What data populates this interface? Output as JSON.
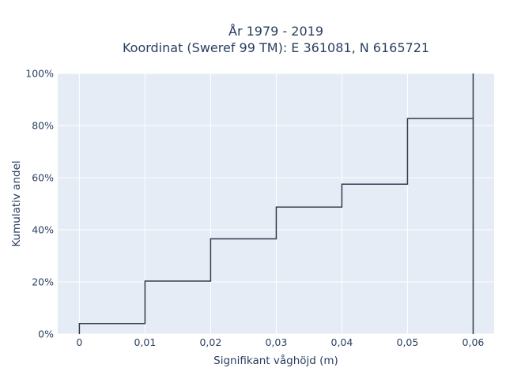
{
  "chart_data": {
    "type": "line",
    "line_shape": "step",
    "title_lines": [
      "År 1979 - 2019",
      "Koordinat (Sweref 99 TM): E 361081, N 6165721"
    ],
    "xlabel": "Signifikant våghöjd (m)",
    "ylabel": "Kumulativ andel",
    "xlim": [
      -0.0033,
      0.0632
    ],
    "ylim": [
      0,
      1.0
    ],
    "x_ticks": [
      0,
      0.01,
      0.02,
      0.03,
      0.04,
      0.05,
      0.06
    ],
    "x_tick_labels": [
      "0",
      "0,01",
      "0,02",
      "0,03",
      "0,04",
      "0,05",
      "0,06"
    ],
    "y_ticks": [
      0,
      0.2,
      0.4,
      0.6,
      0.8,
      1.0
    ],
    "y_tick_labels": [
      "0%",
      "20%",
      "40%",
      "60%",
      "80%",
      "100%"
    ],
    "grid": true,
    "colors": {
      "plot_bg": "#e5ecf6",
      "grid": "#ffffff",
      "line": "#2f3b4c",
      "text": "#2a3f5f"
    },
    "series": [
      {
        "x": [
          0,
          0,
          0.01,
          0.01,
          0.02,
          0.02,
          0.03,
          0.03,
          0.04,
          0.04,
          0.05,
          0.05,
          0.06,
          0.06,
          0.06
        ],
        "y": [
          0,
          0.04,
          0.04,
          0.203,
          0.203,
          0.365,
          0.365,
          0.487,
          0.487,
          0.575,
          0.575,
          0.827,
          0.827,
          1.0,
          0
        ]
      }
    ]
  }
}
